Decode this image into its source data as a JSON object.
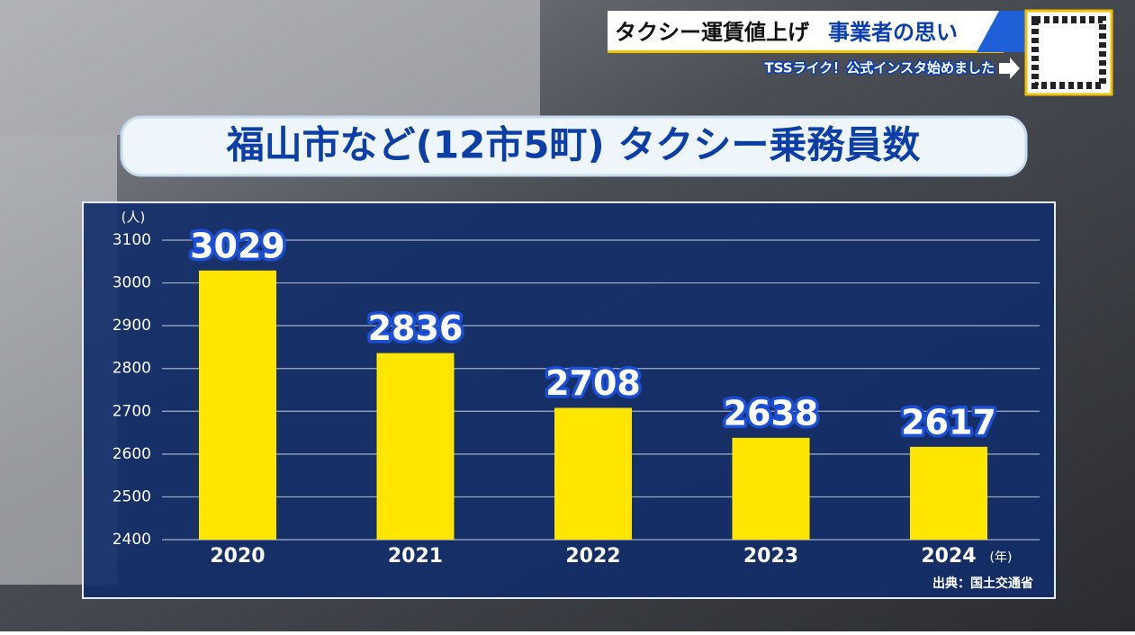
{
  "header": {
    "headline_1": "タクシー運賃値上げ",
    "headline_2": "事業者の思い",
    "promo": "TSSライク！公式インスタ始めました"
  },
  "chart_data": {
    "type": "bar",
    "title": "福山市など(12市5町) タクシー乗務員数",
    "categories": [
      "2020",
      "2021",
      "2022",
      "2023",
      "2024"
    ],
    "values": [
      3029,
      2836,
      2708,
      2638,
      2617
    ],
    "color": "#ffe600",
    "ylim": [
      2400,
      3100
    ],
    "yticks": [
      2400,
      2500,
      2600,
      2700,
      2800,
      2900,
      3000,
      3100
    ],
    "grid": true,
    "y_unit": "(人)",
    "x_unit": "(年)",
    "source": "出典：国土交通省"
  }
}
